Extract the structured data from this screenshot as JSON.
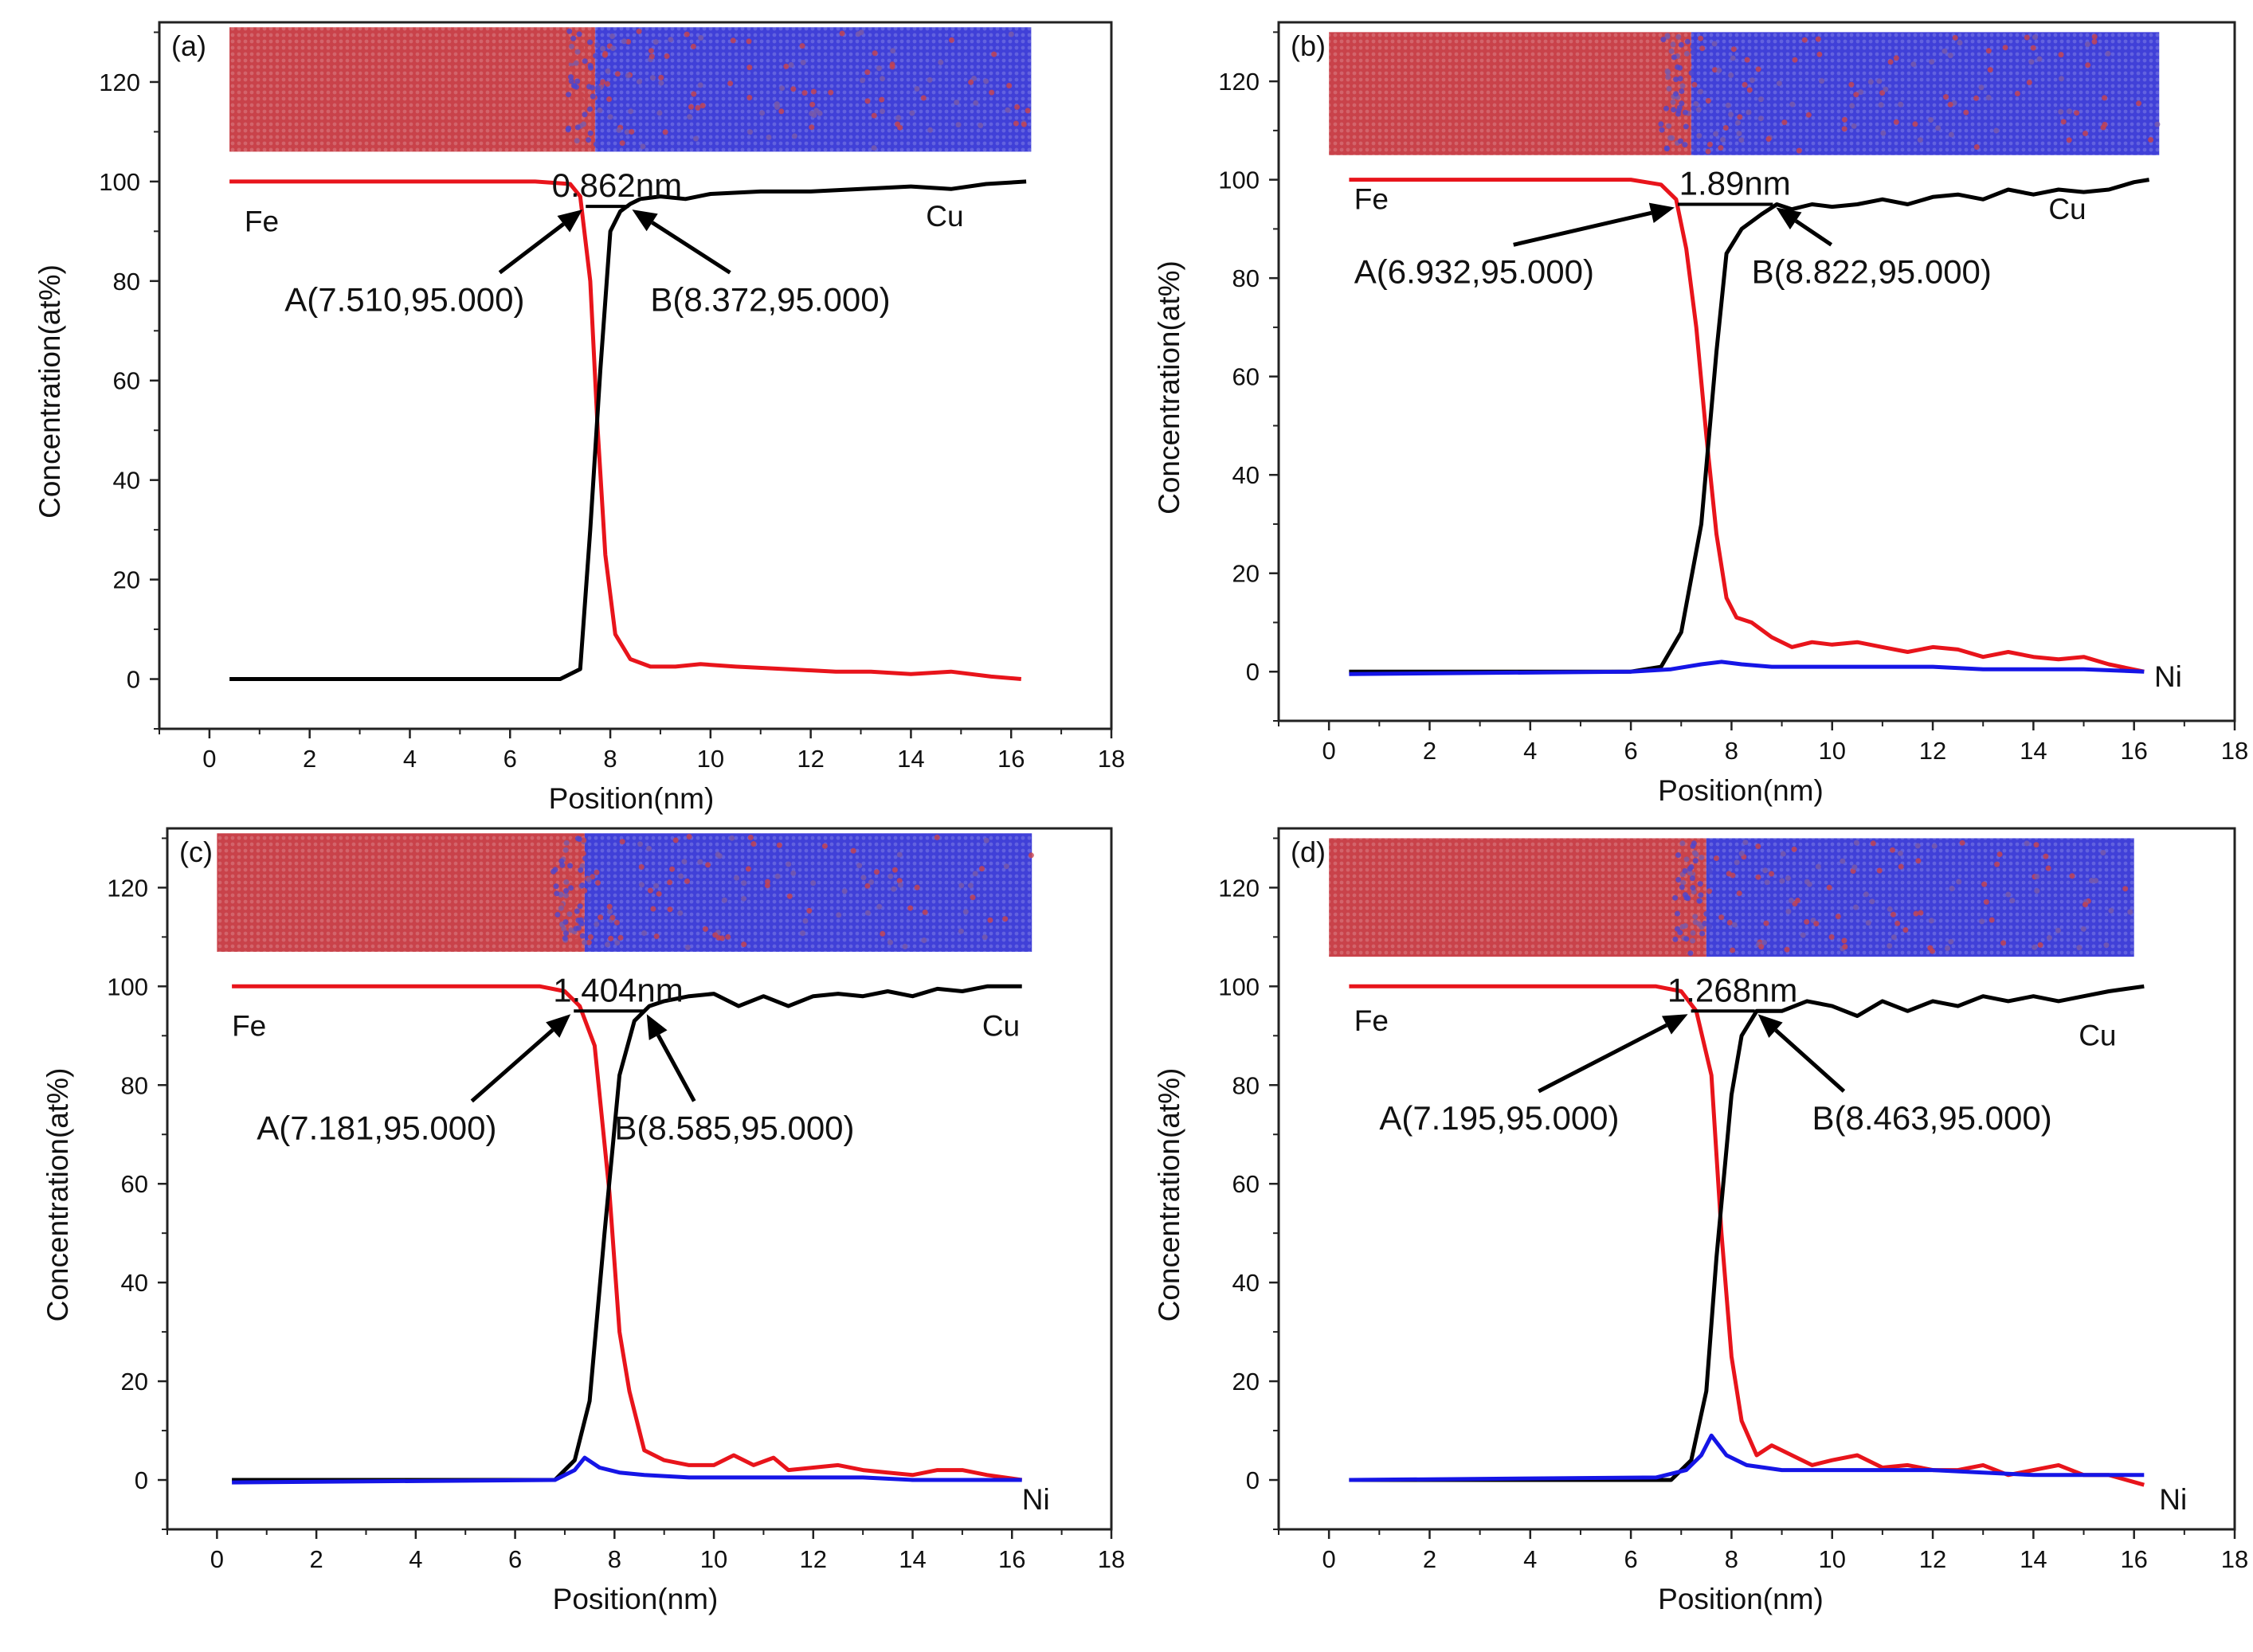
{
  "figure": {
    "panel_count": 4,
    "colors": {
      "Fe": "#e8141b",
      "Cu": "#000000",
      "Ni": "#1515e6",
      "atom_red": "#c9424a",
      "atom_blue": "#4040d8"
    }
  },
  "chart_data": [
    {
      "type": "line",
      "panel": "(a)",
      "xlabel": "Position(nm)",
      "ylabel": "Concentration(at%)",
      "xlim": [
        -1,
        18
      ],
      "ylim": [
        -10,
        132
      ],
      "xticks": [
        0,
        2,
        4,
        6,
        8,
        10,
        12,
        14,
        16,
        18
      ],
      "yticks": [
        0,
        20,
        40,
        60,
        80,
        100,
        120
      ],
      "series": [
        {
          "name": "Fe",
          "color": "#e8141b",
          "x": [
            0.4,
            6.5,
            7.2,
            7.4,
            7.6,
            7.75,
            7.9,
            8.1,
            8.4,
            8.8,
            9.3,
            9.8,
            10.5,
            11.5,
            12.5,
            13.2,
            14.0,
            14.8,
            15.6,
            16.2
          ],
          "y": [
            100,
            100,
            99.5,
            97,
            80,
            50,
            25,
            9,
            4,
            2.5,
            2.5,
            3,
            2.5,
            2,
            1.5,
            1.5,
            1,
            1.5,
            0.5,
            0
          ]
        },
        {
          "name": "Cu",
          "color": "#000000",
          "x": [
            0.4,
            7.0,
            7.4,
            7.6,
            7.8,
            8.0,
            8.2,
            8.4,
            8.6,
            9.0,
            9.5,
            10.0,
            11.0,
            12.0,
            13.0,
            14.0,
            14.8,
            15.5,
            16.3
          ],
          "y": [
            0,
            0,
            2,
            30,
            62,
            90,
            94,
            95.5,
            96.5,
            97,
            96.5,
            97.5,
            98,
            98,
            98.5,
            99,
            98.5,
            99.5,
            100
          ]
        }
      ],
      "series_labels": {
        "Fe": "Fe",
        "Cu": "Cu"
      },
      "interface": {
        "width_label": "0.862nm",
        "A": {
          "x": 7.51,
          "label": "A(7.510,95.000)"
        },
        "B": {
          "x": 8.372,
          "label": "B(8.372,95.000)"
        },
        "level": 95
      },
      "atoms_inset": {
        "x_range": [
          0.4,
          16.4
        ],
        "y_range": [
          106,
          131
        ],
        "boundary_x": 7.7
      }
    },
    {
      "type": "line",
      "panel": "(b)",
      "xlabel": "Position(nm)",
      "ylabel": "Concentration(at%)",
      "xlim": [
        -1,
        18
      ],
      "ylim": [
        -10,
        132
      ],
      "xticks": [
        0,
        2,
        4,
        6,
        8,
        10,
        12,
        14,
        16,
        18
      ],
      "yticks": [
        0,
        20,
        40,
        60,
        80,
        100,
        120
      ],
      "series": [
        {
          "name": "Fe",
          "color": "#e8141b",
          "x": [
            0.4,
            6.0,
            6.6,
            6.9,
            7.1,
            7.3,
            7.5,
            7.7,
            7.9,
            8.1,
            8.4,
            8.8,
            9.2,
            9.6,
            10.0,
            10.5,
            11.0,
            11.5,
            12.0,
            12.5,
            13.0,
            13.5,
            14.0,
            14.5,
            15.0,
            15.5,
            16.2
          ],
          "y": [
            100,
            100,
            99,
            96,
            86,
            70,
            48,
            28,
            15,
            11,
            10,
            7,
            5,
            6,
            5.5,
            6,
            5,
            4,
            5,
            4.5,
            3,
            4,
            3,
            2.5,
            3,
            1.5,
            0
          ]
        },
        {
          "name": "Cu",
          "color": "#000000",
          "x": [
            0.4,
            6.0,
            6.6,
            7.0,
            7.4,
            7.7,
            7.9,
            8.2,
            8.6,
            8.9,
            9.2,
            9.6,
            10.0,
            10.5,
            11.0,
            11.5,
            12.0,
            12.5,
            13.0,
            13.5,
            14.0,
            14.5,
            15.0,
            15.5,
            16.0,
            16.3
          ],
          "y": [
            0,
            0,
            1,
            8,
            30,
            65,
            85,
            90,
            93,
            95,
            94,
            95,
            94.5,
            95,
            96,
            95,
            96.5,
            97,
            96,
            98,
            97,
            98,
            97.5,
            98,
            99.5,
            100
          ]
        },
        {
          "name": "Ni",
          "color": "#1515e6",
          "x": [
            0.4,
            6.0,
            6.8,
            7.4,
            7.8,
            8.2,
            8.8,
            9.5,
            10.5,
            12.0,
            13.0,
            14.0,
            15.0,
            16.2
          ],
          "y": [
            -0.5,
            0,
            0.5,
            1.5,
            2,
            1.5,
            1,
            1,
            1,
            1,
            0.5,
            0.5,
            0.5,
            0
          ]
        }
      ],
      "series_labels": {
        "Fe": "Fe",
        "Cu": "Cu",
        "Ni": "Ni"
      },
      "interface": {
        "width_label": "1.89nm",
        "A": {
          "x": 6.932,
          "label": "A(6.932,95.000)"
        },
        "B": {
          "x": 8.822,
          "label": "B(8.822,95.000)"
        },
        "level": 95
      },
      "atoms_inset": {
        "x_range": [
          0.0,
          16.5
        ],
        "y_range": [
          105,
          130
        ],
        "boundary_x": 7.2
      }
    },
    {
      "type": "line",
      "panel": "(c)",
      "xlabel": "Position(nm)",
      "ylabel": "Concentration(at%)",
      "xlim": [
        -1,
        18
      ],
      "ylim": [
        -10,
        132
      ],
      "xticks": [
        0,
        2,
        4,
        6,
        8,
        10,
        12,
        14,
        16,
        18
      ],
      "yticks": [
        0,
        20,
        40,
        60,
        80,
        100,
        120
      ],
      "series": [
        {
          "name": "Fe",
          "color": "#e8141b",
          "x": [
            0.3,
            6.5,
            7.0,
            7.3,
            7.6,
            7.9,
            8.1,
            8.3,
            8.6,
            9.0,
            9.5,
            10.0,
            10.4,
            10.8,
            11.2,
            11.5,
            12.0,
            12.5,
            13.0,
            13.5,
            14.0,
            14.5,
            15.0,
            15.5,
            16.2
          ],
          "y": [
            100,
            100,
            99,
            96,
            88,
            58,
            30,
            18,
            6,
            4,
            3,
            3,
            5,
            3,
            4.5,
            2,
            2.5,
            3,
            2,
            1.5,
            1,
            2,
            2,
            1,
            0
          ]
        },
        {
          "name": "Cu",
          "color": "#000000",
          "x": [
            0.3,
            6.8,
            7.2,
            7.5,
            7.8,
            8.1,
            8.4,
            8.7,
            9.0,
            9.5,
            10.0,
            10.5,
            11.0,
            11.5,
            12.0,
            12.5,
            13.0,
            13.5,
            14.0,
            14.5,
            15.0,
            15.5,
            16.2
          ],
          "y": [
            0,
            0,
            4,
            16,
            50,
            82,
            93,
            96,
            97,
            98,
            98.5,
            96,
            98,
            96,
            98,
            98.5,
            98,
            99,
            98,
            99.5,
            99,
            100,
            100
          ]
        },
        {
          "name": "Ni",
          "color": "#1515e6",
          "x": [
            0.3,
            6.8,
            7.2,
            7.4,
            7.7,
            8.1,
            8.6,
            9.5,
            11.0,
            13.0,
            14.0,
            16.2
          ],
          "y": [
            -0.5,
            0,
            2,
            4.5,
            2.5,
            1.5,
            1,
            0.5,
            0.5,
            0.5,
            0,
            0
          ]
        }
      ],
      "series_labels": {
        "Fe": "Fe",
        "Cu": "Cu",
        "Ni": "Ni"
      },
      "interface": {
        "width_label": "1.404nm",
        "A": {
          "x": 7.181,
          "label": "A(7.181,95.000)"
        },
        "B": {
          "x": 8.585,
          "label": "B(8.585,95.000)"
        },
        "level": 95
      },
      "atoms_inset": {
        "x_range": [
          0.0,
          16.4
        ],
        "y_range": [
          107,
          131
        ],
        "boundary_x": 7.4
      }
    },
    {
      "type": "line",
      "panel": "(d)",
      "xlabel": "Position(nm)",
      "ylabel": "Concentration(at%)",
      "xlim": [
        -1,
        18
      ],
      "ylim": [
        -10,
        132
      ],
      "xticks": [
        0,
        2,
        4,
        6,
        8,
        10,
        12,
        14,
        16,
        18
      ],
      "yticks": [
        0,
        20,
        40,
        60,
        80,
        100,
        120
      ],
      "series": [
        {
          "name": "Fe",
          "color": "#e8141b",
          "x": [
            0.4,
            6.5,
            7.0,
            7.3,
            7.6,
            7.8,
            8.0,
            8.2,
            8.5,
            8.8,
            9.2,
            9.6,
            10.0,
            10.5,
            11.0,
            11.5,
            12.0,
            12.5,
            13.0,
            13.5,
            14.0,
            14.5,
            15.0,
            15.5,
            16.2
          ],
          "y": [
            100,
            100,
            99,
            95,
            82,
            50,
            25,
            12,
            5,
            7,
            5,
            3,
            4,
            5,
            2.5,
            3,
            2,
            2,
            3,
            1,
            2,
            3,
            1,
            1,
            -1
          ]
        },
        {
          "name": "Cu",
          "color": "#000000",
          "x": [
            0.4,
            6.8,
            7.2,
            7.5,
            7.7,
            8.0,
            8.2,
            8.5,
            9.0,
            9.5,
            10.0,
            10.5,
            11.0,
            11.5,
            12.0,
            12.5,
            13.0,
            13.5,
            14.0,
            14.5,
            15.0,
            15.5,
            16.2
          ],
          "y": [
            0,
            0,
            4,
            18,
            45,
            78,
            90,
            95,
            95,
            97,
            96,
            94,
            97,
            95,
            97,
            96,
            98,
            97,
            98,
            97,
            98,
            99,
            100
          ]
        },
        {
          "name": "Ni",
          "color": "#1515e6",
          "x": [
            0.4,
            6.5,
            7.1,
            7.4,
            7.6,
            7.9,
            8.3,
            9.0,
            10.0,
            12.0,
            13.0,
            14.0,
            15.0,
            16.2
          ],
          "y": [
            0,
            0.5,
            2,
            5,
            9,
            5,
            3,
            2,
            2,
            2,
            1.5,
            1,
            1,
            1
          ]
        }
      ],
      "series_labels": {
        "Fe": "Fe",
        "Cu": "Cu",
        "Ni": "Ni"
      },
      "interface": {
        "width_label": "1.268nm",
        "A": {
          "x": 7.195,
          "label": "A(7.195,95.000)"
        },
        "B": {
          "x": 8.463,
          "label": "B(8.463,95.000)"
        },
        "level": 95
      },
      "atoms_inset": {
        "x_range": [
          0.0,
          16.0
        ],
        "y_range": [
          106,
          130
        ],
        "boundary_x": 7.5
      }
    }
  ]
}
